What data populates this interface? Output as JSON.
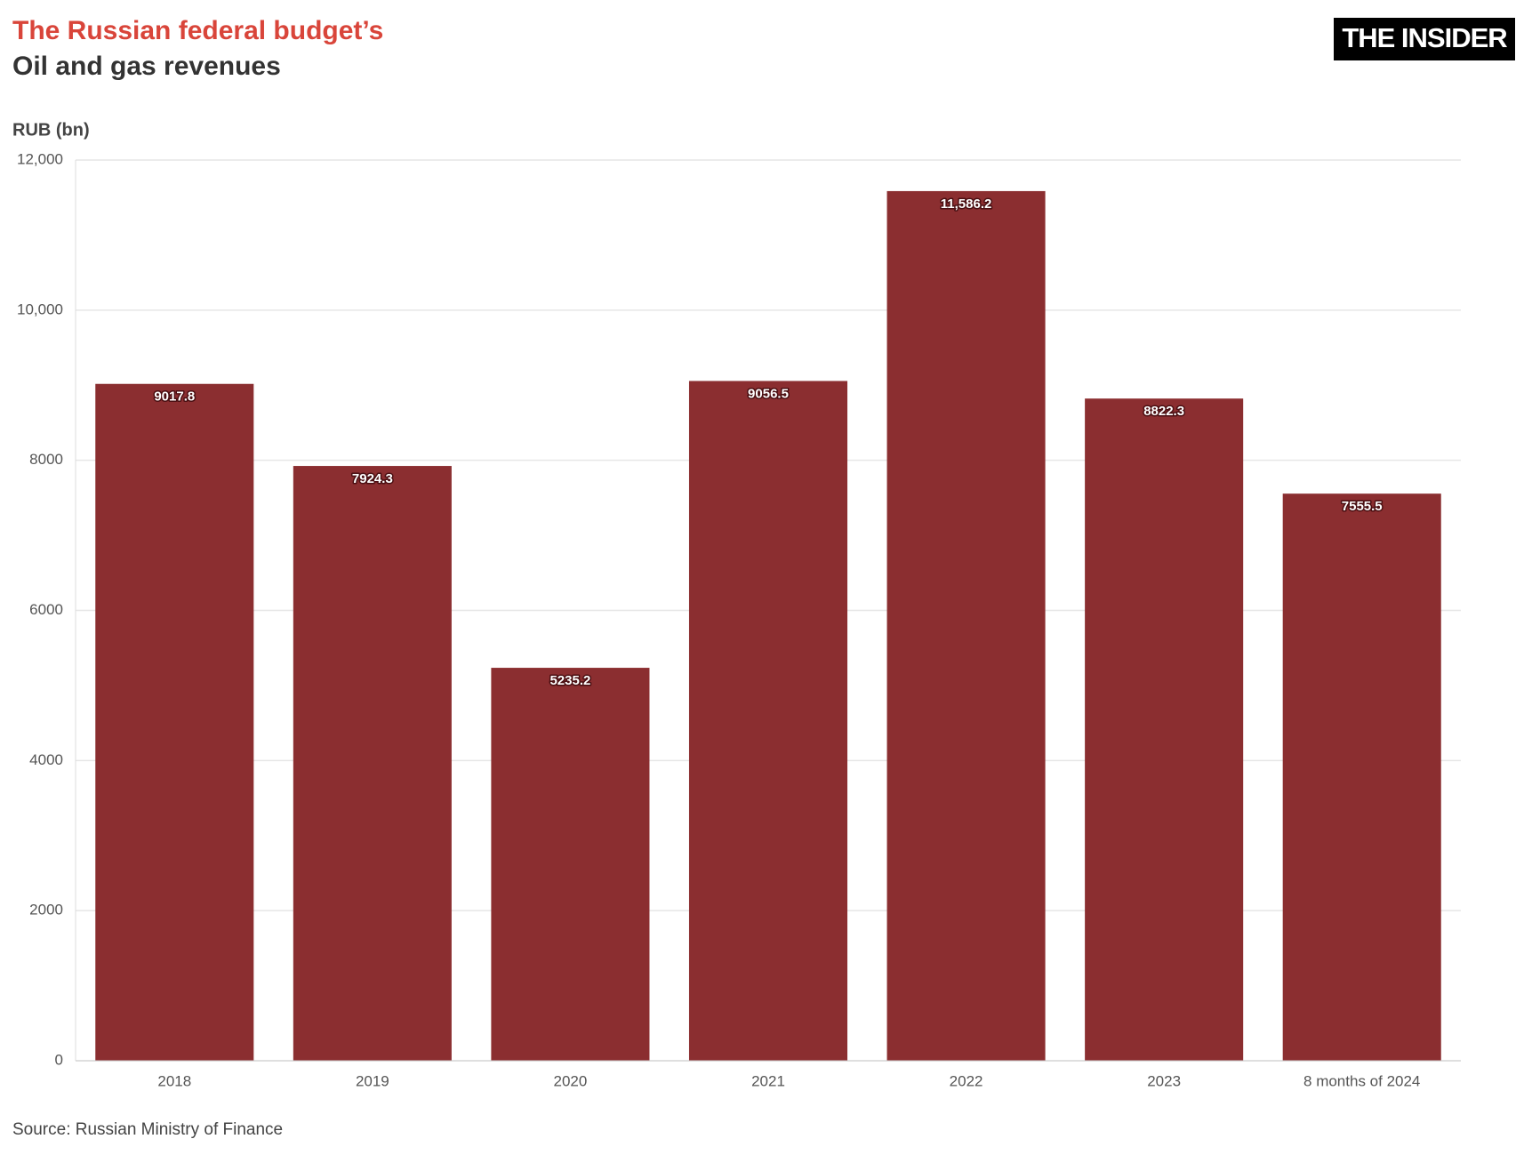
{
  "logo": "THE INSIDER",
  "chart_data": {
    "type": "bar",
    "title": "The Russian federal budget’s",
    "subtitle": "Oil and gas revenues",
    "y_label": "RUB (bn)",
    "source": "Source: Russian Ministry of Finance",
    "categories": [
      "2018",
      "2019",
      "2020",
      "2021",
      "2022",
      "2023",
      "8 months of 2024"
    ],
    "values": [
      9017.8,
      7924.3,
      5235.2,
      9056.5,
      11586.2,
      8822.3,
      7555.5
    ],
    "value_labels": [
      "9017.8",
      "7924.3",
      "5235.2",
      "9056.5",
      "11,586.2",
      "8822.3",
      "7555.5"
    ],
    "color": "#8b2e30",
    "ylim": [
      0,
      12000
    ],
    "yticks": [
      0,
      2000,
      4000,
      6000,
      8000,
      {
        "value": 10000,
        "label": "10,000"
      },
      {
        "value": 12000,
        "label": "12,000"
      }
    ],
    "grid": true
  }
}
